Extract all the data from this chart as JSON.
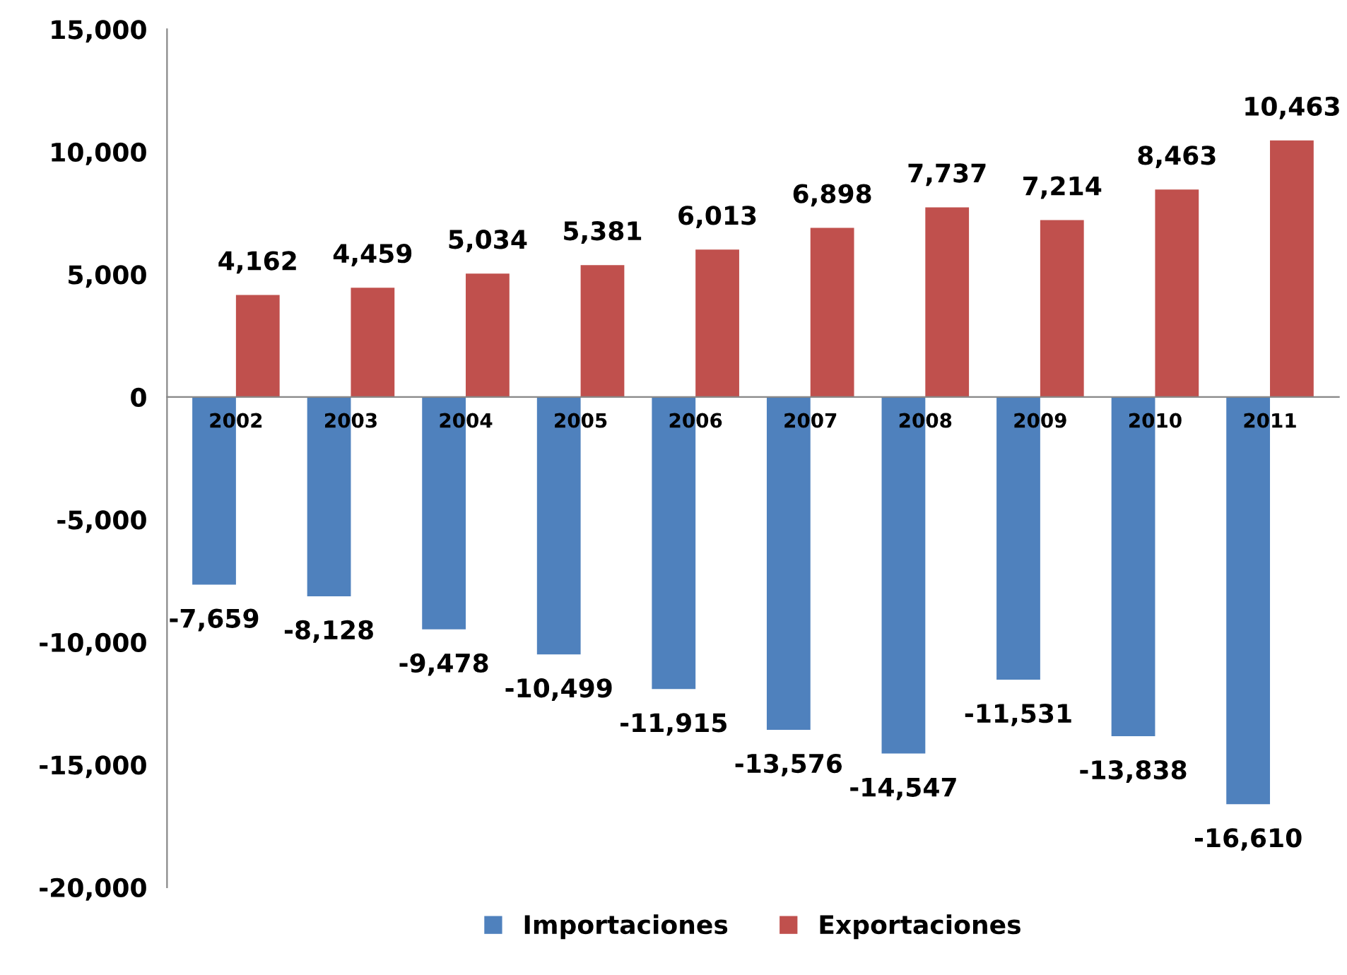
{
  "chart_data": {
    "type": "bar",
    "categories": [
      "2002",
      "2003",
      "2004",
      "2005",
      "2006",
      "2007",
      "2008",
      "2009",
      "2010",
      "2011"
    ],
    "series": [
      {
        "name": "Importaciones",
        "color": "#4f81bd",
        "values": [
          -7659,
          -8128,
          -9478,
          -10499,
          -11915,
          -13576,
          -14547,
          -11531,
          -13838,
          -16610
        ],
        "value_labels": [
          "-7,659",
          "-8,128",
          "-9,478",
          "-10,499",
          "-11,915",
          "-13,576",
          "-14,547",
          "-11,531",
          "-13,838",
          "-16,610"
        ]
      },
      {
        "name": "Exportaciones",
        "color": "#c0504d",
        "values": [
          4162,
          4459,
          5034,
          5381,
          6013,
          6898,
          7737,
          7214,
          8463,
          10463
        ],
        "value_labels": [
          "4,162",
          "4,459",
          "5,034",
          "5,381",
          "6,013",
          "6,898",
          "7,737",
          "7,214",
          "8,463",
          "10,463"
        ]
      }
    ],
    "ylim": [
      -20000,
      15000
    ],
    "yticks": [
      {
        "value": -20000,
        "label": "-20,000"
      },
      {
        "value": -15000,
        "label": "-15,000"
      },
      {
        "value": -10000,
        "label": "-10,000"
      },
      {
        "value": -5000,
        "label": "-5,000"
      },
      0,
      {
        "value": 5000,
        "label": "5,000"
      },
      {
        "value": 10000,
        "label": "10,000"
      },
      {
        "value": 15000,
        "label": "15,000"
      }
    ],
    "grid": false,
    "legend": "bottom"
  }
}
